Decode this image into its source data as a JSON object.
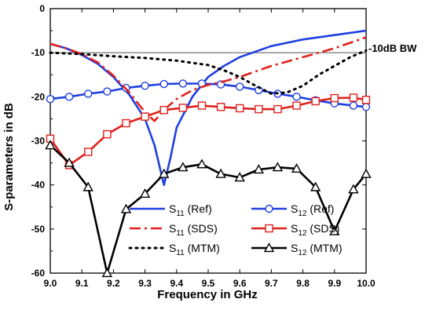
{
  "chart_data": {
    "type": "line",
    "title": "",
    "xlabel": "Frequency in GHz",
    "ylabel": "S-parameters in dB",
    "xlim": [
      9.0,
      10.0
    ],
    "ylim": [
      -60,
      0
    ],
    "xticks": [
      "9.0",
      "9.1",
      "9.2",
      "9.3",
      "9.4",
      "9.5",
      "9.6",
      "9.7",
      "9.8",
      "9.9",
      "10.0"
    ],
    "yticks": [
      "0",
      "-10",
      "-20",
      "-30",
      "-40",
      "-50",
      "-60"
    ],
    "grid": false,
    "legend_position": "bottom-right",
    "reference_line": {
      "y": -10,
      "label": "-10dB BW"
    },
    "legend_labels": [
      {
        "sym": "S",
        "sub": "11",
        "suffix": " (Ref)"
      },
      {
        "sym": "S",
        "sub": "12",
        "suffix": " (Ref)"
      },
      {
        "sym": "S",
        "sub": "11",
        "suffix": " (SDS)"
      },
      {
        "sym": "S",
        "sub": "12",
        "suffix": " (SDS)"
      },
      {
        "sym": "S",
        "sub": "11",
        "suffix": " (MTM)"
      },
      {
        "sym": "S",
        "sub": "12",
        "suffix": " (MTM)"
      }
    ],
    "series": [
      {
        "name": "S11 (Ref)",
        "color": "#1f3fe0",
        "dash": "solid",
        "marker": "none",
        "x": [
          9.0,
          9.05,
          9.1,
          9.15,
          9.2,
          9.25,
          9.3,
          9.33,
          9.36,
          9.38,
          9.4,
          9.45,
          9.5,
          9.55,
          9.6,
          9.7,
          9.8,
          9.9,
          10.0
        ],
        "y": [
          -8,
          -9,
          -10.5,
          -12.5,
          -15.5,
          -19.5,
          -25,
          -31,
          -40,
          -34,
          -27,
          -20,
          -15.5,
          -13,
          -11,
          -8.5,
          -7,
          -6,
          -5
        ]
      },
      {
        "name": "S12 (Ref)",
        "color": "#1f3fe0",
        "dash": "solid",
        "marker": "circle",
        "x": [
          9.0,
          9.06,
          9.12,
          9.18,
          9.24,
          9.3,
          9.36,
          9.42,
          9.48,
          9.54,
          9.6,
          9.66,
          9.72,
          9.78,
          9.84,
          9.9,
          9.96,
          10.0
        ],
        "y": [
          -20.5,
          -20,
          -19.3,
          -18.8,
          -18,
          -17.5,
          -17.1,
          -17,
          -17,
          -17.2,
          -17.7,
          -18.5,
          -19.3,
          -20,
          -20.8,
          -21.5,
          -22,
          -22.3
        ]
      },
      {
        "name": "S11 (SDS)",
        "color": "#e0201c",
        "dash": "dashdot",
        "marker": "none",
        "x": [
          9.0,
          9.05,
          9.1,
          9.15,
          9.2,
          9.25,
          9.3,
          9.33,
          9.36,
          9.4,
          9.45,
          9.5,
          9.55,
          9.6,
          9.7,
          9.8,
          9.9,
          10.0
        ],
        "y": [
          -8,
          -9,
          -10.3,
          -12.2,
          -15.2,
          -19,
          -23.5,
          -25.5,
          -23,
          -20.5,
          -18.5,
          -17.3,
          -16.5,
          -15.5,
          -13,
          -11,
          -9,
          -6.5
        ]
      },
      {
        "name": "S12 (SDS)",
        "color": "#e0201c",
        "dash": "solid",
        "marker": "square",
        "x": [
          9.0,
          9.06,
          9.12,
          9.18,
          9.24,
          9.3,
          9.36,
          9.42,
          9.48,
          9.54,
          9.6,
          9.66,
          9.72,
          9.78,
          9.84,
          9.9,
          9.96,
          10.0
        ],
        "y": [
          -29.5,
          -35.5,
          -32.5,
          -28.5,
          -26,
          -24.5,
          -23,
          -22.5,
          -22,
          -22.3,
          -22.6,
          -22.8,
          -22.8,
          -22,
          -21,
          -20.3,
          -20.2,
          -20.7
        ]
      },
      {
        "name": "S11 (MTM)",
        "color": "#000000",
        "dash": "dotted",
        "marker": "none",
        "x": [
          9.0,
          9.1,
          9.2,
          9.3,
          9.4,
          9.5,
          9.55,
          9.6,
          9.65,
          9.7,
          9.75,
          9.8,
          9.85,
          9.9,
          9.95,
          10.0
        ],
        "y": [
          -10,
          -10.3,
          -10.8,
          -11.2,
          -11.8,
          -12.8,
          -14,
          -15.5,
          -17.5,
          -19.3,
          -19,
          -17.5,
          -15,
          -13,
          -11,
          -9.5
        ]
      },
      {
        "name": "S12 (MTM)",
        "color": "#000000",
        "dash": "solid",
        "marker": "triangle",
        "x": [
          9.0,
          9.06,
          9.12,
          9.18,
          9.24,
          9.3,
          9.36,
          9.42,
          9.48,
          9.54,
          9.6,
          9.66,
          9.72,
          9.78,
          9.84,
          9.9,
          9.96,
          10.0
        ],
        "y": [
          -31,
          -35,
          -40.5,
          -60,
          -45.5,
          -42,
          -37.5,
          -36,
          -35.3,
          -37.5,
          -38.3,
          -36.5,
          -36,
          -36.3,
          -40.5,
          -50.5,
          -41,
          -37.5
        ]
      }
    ]
  }
}
